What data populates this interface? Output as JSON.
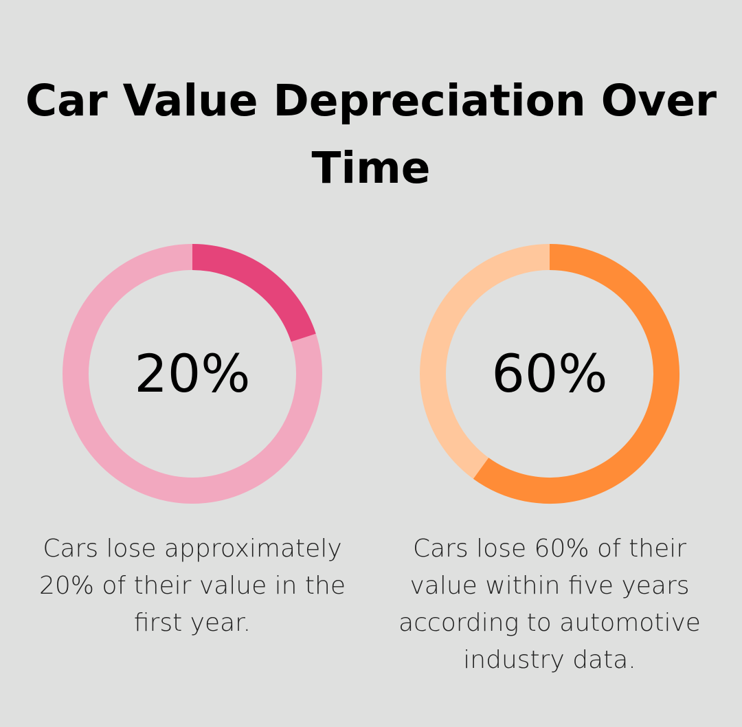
{
  "chart_data": [
    {
      "type": "pie",
      "style": "donut",
      "value": 20,
      "label": "20%",
      "description": "Cars lose approximately 20% of their value in the first year.",
      "colors": {
        "filled": "#e5447a",
        "remaining": "#f2a8bf"
      }
    },
    {
      "type": "pie",
      "style": "donut",
      "value": 60,
      "label": "60%",
      "description": "Cars lose 60% of their value within five years according to automotive industry data.",
      "colors": {
        "filled": "#ff8c37",
        "remaining": "#ffc79c"
      }
    }
  ],
  "title": "Car Value Depreciation Over Time",
  "background": "#dfe0df"
}
